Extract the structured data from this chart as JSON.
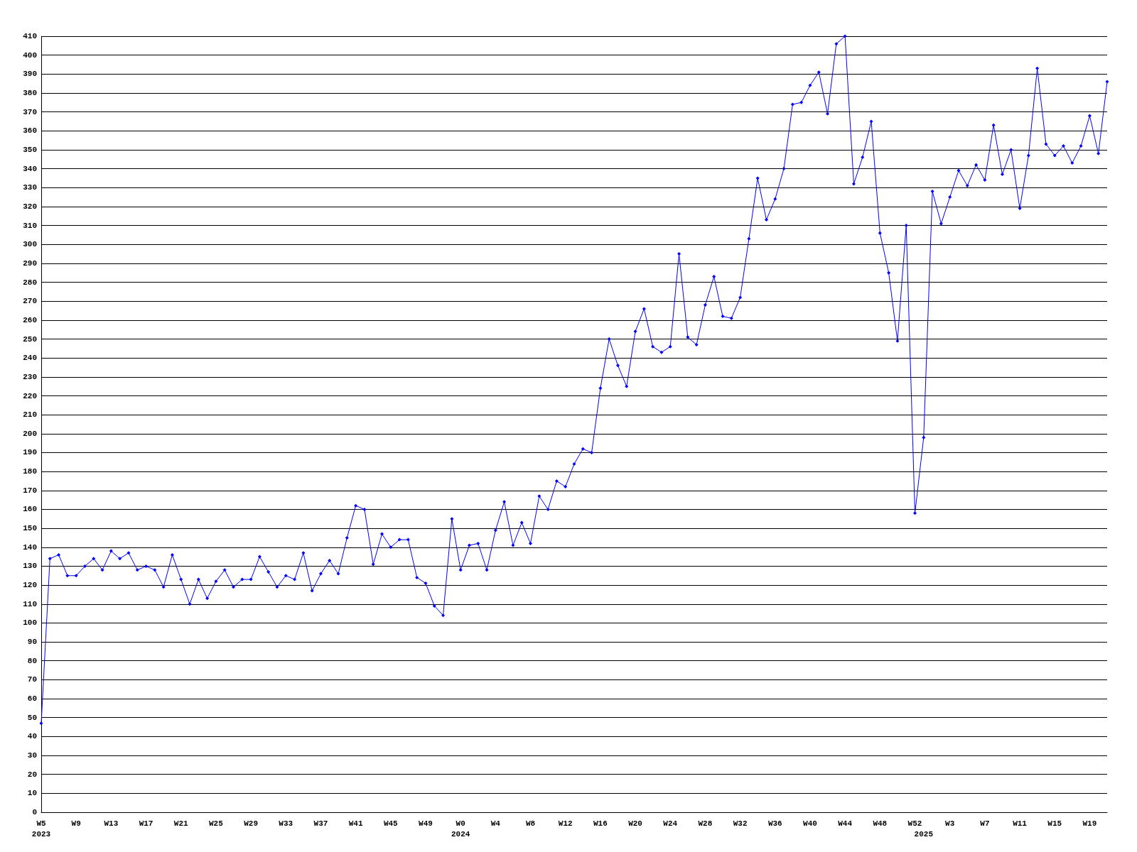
{
  "chart_data": {
    "type": "line",
    "categories": [
      "W5\n2023",
      null,
      null,
      null,
      "W9",
      null,
      null,
      null,
      "W13",
      null,
      null,
      null,
      "W17",
      null,
      null,
      null,
      "W21",
      null,
      null,
      null,
      "W25",
      null,
      null,
      null,
      "W29",
      null,
      null,
      null,
      "W33",
      null,
      null,
      null,
      "W37",
      null,
      null,
      null,
      "W41",
      null,
      null,
      null,
      "W45",
      null,
      null,
      null,
      "W49",
      null,
      null,
      null,
      "W0\n2024",
      null,
      null,
      null,
      "W4",
      null,
      null,
      null,
      "W8",
      null,
      null,
      null,
      "W12",
      null,
      null,
      null,
      "W16",
      null,
      null,
      null,
      "W20",
      null,
      null,
      null,
      "W24",
      null,
      null,
      null,
      "W28",
      null,
      null,
      null,
      "W32",
      null,
      null,
      null,
      "W36",
      null,
      null,
      null,
      "W40",
      null,
      null,
      null,
      "W44",
      null,
      null,
      null,
      "W48",
      null,
      null,
      null,
      "W52",
      "\n2025",
      null,
      null,
      "W3",
      null,
      null,
      null,
      "W7",
      null,
      null,
      null,
      "W11",
      null,
      null,
      null,
      "W15",
      null,
      null,
      null,
      "W19",
      null,
      null
    ],
    "series": [
      {
        "color": "#0000ff",
        "values": [
          47,
          134,
          136,
          125,
          125,
          130,
          134,
          128,
          138,
          134,
          137,
          128,
          130,
          128,
          119,
          136,
          123,
          110,
          123,
          113,
          122,
          128,
          119,
          123,
          123,
          135,
          127,
          119,
          125,
          123,
          137,
          117,
          126,
          133,
          126,
          145,
          162,
          160,
          131,
          147,
          140,
          144,
          144,
          124,
          121,
          109,
          104,
          155,
          128,
          141,
          142,
          128,
          149,
          164,
          141,
          153,
          142,
          167,
          160,
          175,
          172,
          184,
          192,
          190,
          224,
          250,
          236,
          225,
          254,
          266,
          246,
          243,
          246,
          295,
          251,
          247,
          268,
          283,
          262,
          261,
          272,
          303,
          335,
          313,
          324,
          340,
          374,
          375,
          384,
          391,
          369,
          406,
          410,
          332,
          346,
          365,
          306,
          285,
          249,
          310,
          158,
          198,
          328,
          311,
          325,
          339,
          331,
          342,
          334,
          363,
          337,
          350,
          319,
          347,
          393,
          353,
          347,
          352,
          343,
          352,
          368,
          348,
          386
        ]
      }
    ],
    "ylim": [
      0,
      410
    ],
    "yticks": [
      0,
      10,
      20,
      30,
      40,
      50,
      60,
      70,
      80,
      90,
      100,
      110,
      120,
      130,
      140,
      150,
      160,
      170,
      180,
      190,
      200,
      210,
      220,
      230,
      240,
      250,
      260,
      270,
      280,
      290,
      300,
      310,
      320,
      330,
      340,
      350,
      360,
      370,
      380,
      390,
      400,
      410
    ],
    "grid": "y",
    "marker": "diamond",
    "line_style": "solid"
  }
}
